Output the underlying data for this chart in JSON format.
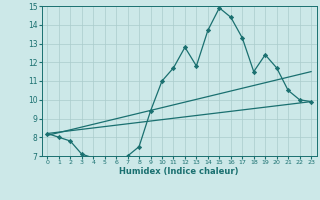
{
  "xlabel": "Humidex (Indice chaleur)",
  "bg_color": "#cce8e8",
  "grid_color": "#aacccc",
  "line_color": "#1a7070",
  "xlim": [
    -0.5,
    23.5
  ],
  "ylim": [
    7,
    15
  ],
  "xticks": [
    0,
    1,
    2,
    3,
    4,
    5,
    6,
    7,
    8,
    9,
    10,
    11,
    12,
    13,
    14,
    15,
    16,
    17,
    18,
    19,
    20,
    21,
    22,
    23
  ],
  "yticks": [
    7,
    8,
    9,
    10,
    11,
    12,
    13,
    14,
    15
  ],
  "series1_x": [
    0,
    1,
    2,
    3,
    4,
    5,
    6,
    7,
    8,
    9,
    10,
    11,
    12,
    13,
    14,
    15,
    16,
    17,
    18,
    19,
    20,
    21,
    22,
    23
  ],
  "series1_y": [
    8.2,
    8.0,
    7.8,
    7.1,
    6.9,
    6.7,
    6.6,
    7.0,
    7.5,
    9.4,
    11.0,
    11.7,
    12.8,
    11.8,
    13.7,
    14.9,
    14.4,
    13.3,
    11.5,
    12.4,
    11.7,
    10.5,
    10.0,
    9.9
  ],
  "series2_x": [
    0,
    23
  ],
  "series2_y": [
    8.1,
    11.5
  ],
  "series3_x": [
    0,
    23
  ],
  "series3_y": [
    8.2,
    9.9
  ]
}
